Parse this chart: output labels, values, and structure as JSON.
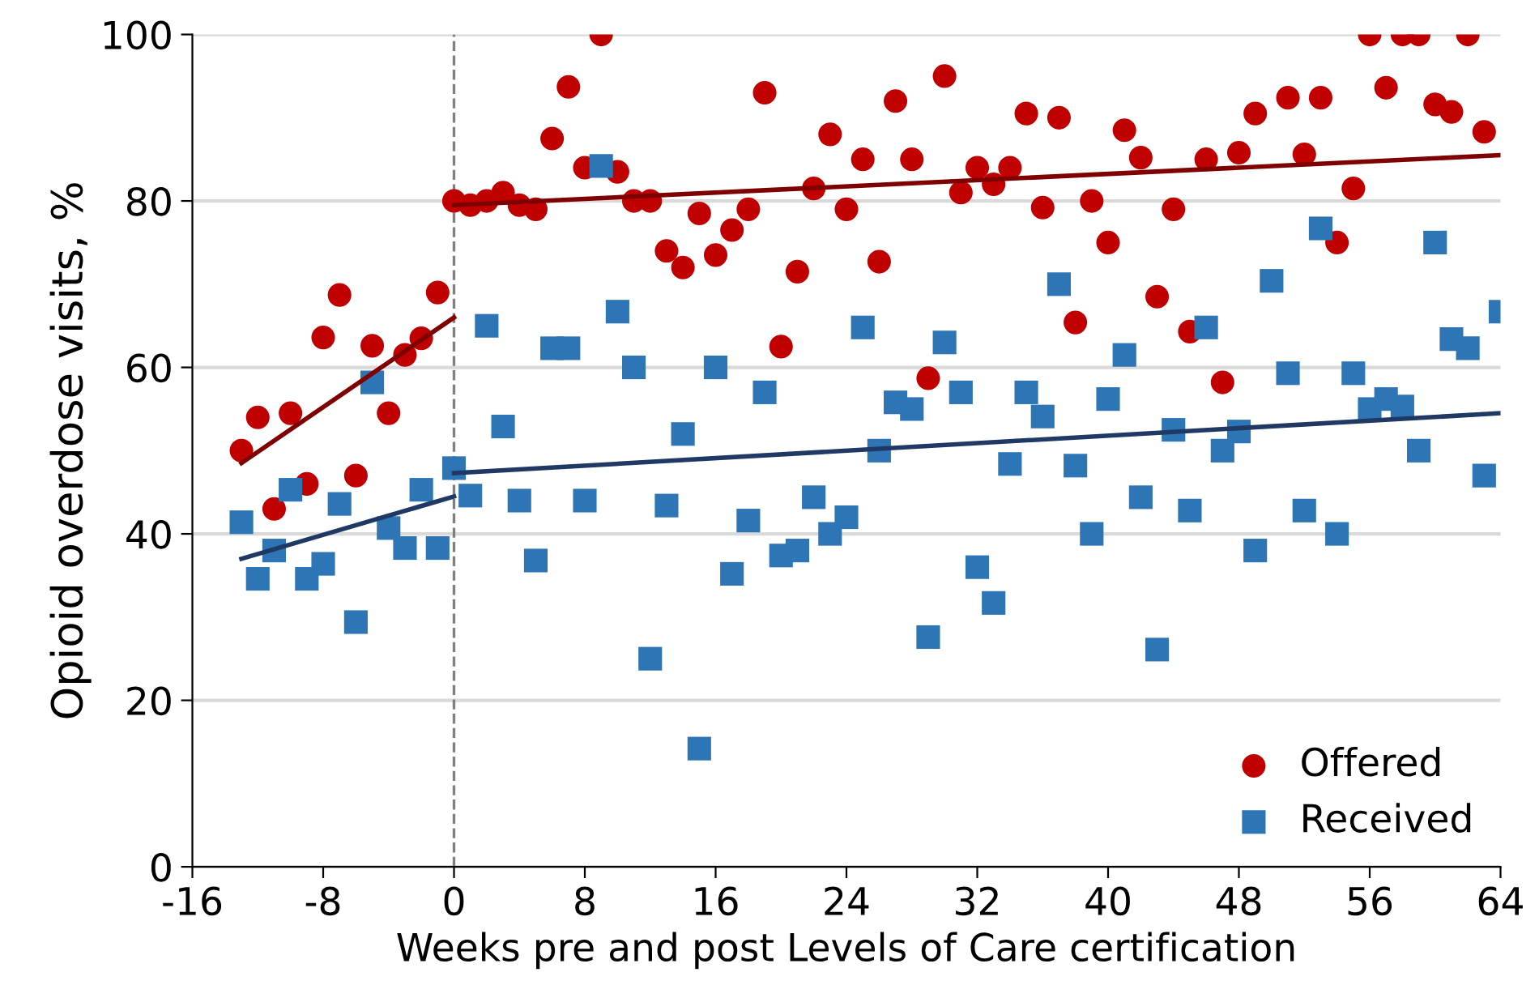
{
  "chart_data": {
    "type": "scatter",
    "xlabel": "Weeks pre and post Levels of Care certification",
    "ylabel": "Opioid overdose visits, %",
    "xlim": [
      -16,
      64
    ],
    "xticks": [
      -16,
      -8,
      0,
      8,
      16,
      24,
      32,
      40,
      48,
      56,
      64
    ],
    "ylim": [
      0,
      100
    ],
    "yticks": [
      0,
      20,
      40,
      60,
      80,
      100
    ],
    "grid": "y",
    "legend": "bottom right",
    "ref_lines": [
      {
        "axis": "x",
        "value": 0,
        "color": "#808080",
        "line_style": "dashed"
      }
    ],
    "series": [
      {
        "name": "Offered",
        "color": "#c00000",
        "marker": "circle",
        "x": [
          -13,
          -12,
          -11,
          -10,
          -9,
          -8,
          -7,
          -6,
          -5,
          -4,
          -3,
          -2,
          -1,
          0,
          1,
          2,
          3,
          4,
          5,
          6,
          7,
          8,
          9,
          10,
          11,
          12,
          13,
          14,
          15,
          16,
          17,
          18,
          19,
          20,
          21,
          22,
          23,
          24,
          25,
          26,
          27,
          28,
          29,
          30,
          31,
          32,
          33,
          34,
          35,
          36,
          37,
          38,
          39,
          40,
          41,
          42,
          43,
          44,
          45,
          46,
          47,
          48,
          49,
          51,
          52,
          53,
          54,
          55,
          56,
          57,
          58,
          59,
          60,
          61,
          62,
          63
        ],
        "values": [
          50,
          54,
          43,
          54.5,
          46,
          63.6,
          68.7,
          47,
          62.6,
          54.5,
          61.5,
          63.5,
          69,
          80,
          79.5,
          80,
          81,
          79.5,
          79,
          87.5,
          93.7,
          84,
          100,
          83.5,
          80,
          80,
          74,
          72,
          78.5,
          73.5,
          76.5,
          79,
          93,
          62.5,
          71.5,
          81.5,
          88,
          79,
          85,
          72.7,
          92,
          85,
          58.7,
          95,
          81,
          84,
          82,
          84,
          90.5,
          79.2,
          90,
          65.4,
          80,
          75,
          88.5,
          85.2,
          68.5,
          79,
          64.3,
          85,
          58.2,
          85.8,
          90.5,
          92.4,
          85.6,
          92.4,
          75,
          81.5,
          100,
          93.6,
          100,
          100,
          91.6,
          90.7,
          100,
          88.3
        ]
      },
      {
        "name": "Received",
        "color": "#2e75b6",
        "marker": "square",
        "x": [
          -13,
          -12,
          -11,
          -10,
          -9,
          -8,
          -7,
          -6,
          -5,
          -4,
          -3,
          -2,
          -1,
          0,
          1,
          2,
          3,
          4,
          5,
          6,
          7,
          8,
          9,
          10,
          11,
          12,
          13,
          14,
          15,
          16,
          17,
          18,
          19,
          20,
          21,
          22,
          23,
          24,
          25,
          26,
          27,
          28,
          29,
          30,
          31,
          32,
          33,
          34,
          35,
          36,
          37,
          38,
          39,
          40,
          41,
          42,
          43,
          44,
          45,
          46,
          47,
          48,
          49,
          50,
          51,
          52,
          53,
          54,
          55,
          56,
          57,
          58,
          59,
          60,
          61,
          62,
          63,
          64
        ],
        "values": [
          41.4,
          34.6,
          38,
          45.3,
          34.6,
          36.4,
          43.6,
          29.4,
          58.2,
          40.7,
          38.3,
          45.3,
          38.3,
          47.9,
          44.6,
          65,
          52.9,
          44,
          36.8,
          62.3,
          62.3,
          44,
          84.2,
          66.7,
          60,
          25,
          43.4,
          52,
          14.2,
          60,
          35.2,
          41.6,
          57,
          37.4,
          38,
          44.4,
          40,
          42,
          64.8,
          50,
          55.8,
          55,
          27.6,
          63,
          57,
          36,
          31.7,
          48.4,
          57,
          54.1,
          70,
          48.2,
          40,
          56.2,
          61.5,
          44.4,
          26.1,
          52.5,
          42.8,
          64.8,
          50,
          52.3,
          38,
          70.4,
          59.3,
          42.8,
          76.7,
          40,
          59.3,
          55,
          56.2,
          55.3,
          50,
          75,
          63.4,
          62.3,
          47,
          66.7
        ]
      },
      {
        "type": "line",
        "marker": "none",
        "color": "#7f0000",
        "x": [
          -13,
          0
        ],
        "values": [
          48.5,
          66
        ]
      },
      {
        "type": "line",
        "marker": "none",
        "color": "#7f0000",
        "x": [
          0,
          64
        ],
        "values": [
          79.5,
          85.5
        ]
      },
      {
        "type": "line",
        "marker": "none",
        "color": "#1f3864",
        "x": [
          -13,
          0
        ],
        "values": [
          37,
          44.5
        ]
      },
      {
        "type": "line",
        "marker": "none",
        "color": "#1f3864",
        "x": [
          0,
          64
        ],
        "values": [
          47.3,
          54.5
        ]
      }
    ]
  }
}
